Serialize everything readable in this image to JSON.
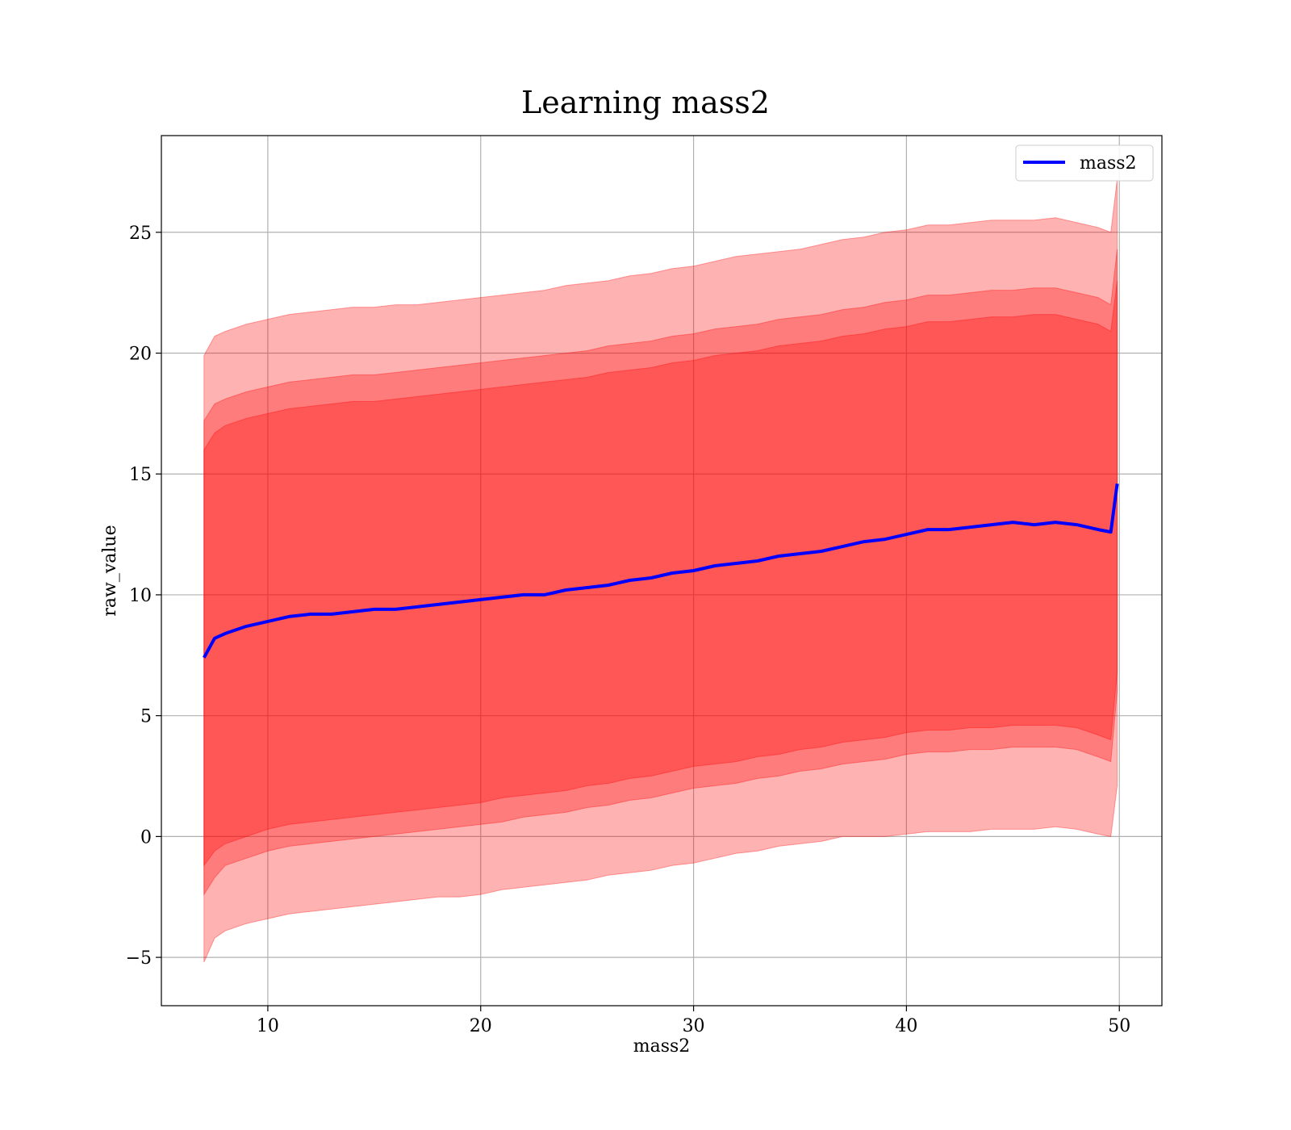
{
  "chart_data": {
    "type": "line",
    "title": "Learning mass2",
    "xlabel": "mass2",
    "ylabel": "raw_value",
    "xlim": [
      5,
      52
    ],
    "ylim": [
      -7,
      29
    ],
    "xticks": [
      10,
      20,
      30,
      40,
      50
    ],
    "yticks": [
      -5,
      0,
      5,
      10,
      15,
      20,
      25
    ],
    "xtick_labels": [
      "10",
      "20",
      "30",
      "40",
      "50"
    ],
    "ytick_labels": [
      "−5",
      "0",
      "5",
      "10",
      "15",
      "20",
      "25"
    ],
    "grid": true,
    "legend_position": "top-right",
    "colors": {
      "line": "#0000ff",
      "band": "#ff0000"
    },
    "series": [
      {
        "name": "mass2",
        "x": [
          7,
          7.5,
          8,
          9,
          10,
          11,
          12,
          13,
          14,
          15,
          16,
          17,
          18,
          19,
          20,
          21,
          22,
          23,
          24,
          25,
          26,
          27,
          28,
          29,
          30,
          31,
          32,
          33,
          34,
          35,
          36,
          37,
          38,
          39,
          40,
          41,
          42,
          43,
          44,
          45,
          46,
          47,
          48,
          49,
          49.6,
          49.9
        ],
        "y": [
          7.4,
          8.2,
          8.4,
          8.7,
          8.9,
          9.1,
          9.2,
          9.2,
          9.3,
          9.4,
          9.4,
          9.5,
          9.6,
          9.7,
          9.8,
          9.9,
          10.0,
          10.0,
          10.2,
          10.3,
          10.4,
          10.6,
          10.7,
          10.9,
          11.0,
          11.2,
          11.3,
          11.4,
          11.6,
          11.7,
          11.8,
          12.0,
          12.2,
          12.3,
          12.5,
          12.7,
          12.7,
          12.8,
          12.9,
          13.0,
          12.9,
          13.0,
          12.9,
          12.7,
          12.6,
          14.6
        ]
      }
    ],
    "bands": [
      {
        "x": [
          7,
          7.5,
          8,
          9,
          10,
          11,
          12,
          13,
          14,
          15,
          16,
          17,
          18,
          19,
          20,
          21,
          22,
          23,
          24,
          25,
          26,
          27,
          28,
          29,
          30,
          31,
          32,
          33,
          34,
          35,
          36,
          37,
          38,
          39,
          40,
          41,
          42,
          43,
          44,
          45,
          46,
          47,
          48,
          49,
          49.6,
          49.9
        ],
        "lower": [
          -5.2,
          -4.2,
          -3.9,
          -3.6,
          -3.4,
          -3.2,
          -3.1,
          -3.0,
          -2.9,
          -2.8,
          -2.7,
          -2.6,
          -2.5,
          -2.5,
          -2.4,
          -2.2,
          -2.1,
          -2.0,
          -1.9,
          -1.8,
          -1.6,
          -1.5,
          -1.4,
          -1.2,
          -1.1,
          -0.9,
          -0.7,
          -0.6,
          -0.4,
          -0.3,
          -0.2,
          0.0,
          0.0,
          0.0,
          0.1,
          0.2,
          0.2,
          0.2,
          0.3,
          0.3,
          0.3,
          0.4,
          0.3,
          0.1,
          0.0,
          2.1
        ],
        "upper": [
          19.9,
          20.7,
          20.9,
          21.2,
          21.4,
          21.6,
          21.7,
          21.8,
          21.9,
          21.9,
          22.0,
          22.0,
          22.1,
          22.2,
          22.3,
          22.4,
          22.5,
          22.6,
          22.8,
          22.9,
          23.0,
          23.2,
          23.3,
          23.5,
          23.6,
          23.8,
          24.0,
          24.1,
          24.2,
          24.3,
          24.5,
          24.7,
          24.8,
          25.0,
          25.1,
          25.3,
          25.3,
          25.4,
          25.5,
          25.5,
          25.5,
          25.6,
          25.4,
          25.2,
          25.0,
          27.2
        ],
        "opacity": 0.3
      },
      {
        "x": [
          7,
          7.5,
          8,
          9,
          10,
          11,
          12,
          13,
          14,
          15,
          16,
          17,
          18,
          19,
          20,
          21,
          22,
          23,
          24,
          25,
          26,
          27,
          28,
          29,
          30,
          31,
          32,
          33,
          34,
          35,
          36,
          37,
          38,
          39,
          40,
          41,
          42,
          43,
          44,
          45,
          46,
          47,
          48,
          49,
          49.6,
          49.9
        ],
        "lower": [
          -2.4,
          -1.7,
          -1.2,
          -0.9,
          -0.6,
          -0.4,
          -0.3,
          -0.2,
          -0.1,
          0.0,
          0.1,
          0.2,
          0.3,
          0.4,
          0.5,
          0.6,
          0.8,
          0.9,
          1.0,
          1.2,
          1.3,
          1.5,
          1.6,
          1.8,
          2.0,
          2.1,
          2.2,
          2.4,
          2.5,
          2.7,
          2.8,
          3.0,
          3.1,
          3.2,
          3.4,
          3.5,
          3.5,
          3.6,
          3.6,
          3.7,
          3.7,
          3.7,
          3.6,
          3.3,
          3.1,
          6.0
        ],
        "upper": [
          17.2,
          17.9,
          18.1,
          18.4,
          18.6,
          18.8,
          18.9,
          19.0,
          19.1,
          19.1,
          19.2,
          19.3,
          19.4,
          19.5,
          19.6,
          19.7,
          19.8,
          19.9,
          20.0,
          20.1,
          20.3,
          20.4,
          20.5,
          20.7,
          20.8,
          21.0,
          21.1,
          21.2,
          21.4,
          21.5,
          21.6,
          21.8,
          21.9,
          22.1,
          22.2,
          22.4,
          22.4,
          22.5,
          22.6,
          22.6,
          22.7,
          22.7,
          22.5,
          22.3,
          22.0,
          24.3
        ],
        "opacity": 0.3
      },
      {
        "x": [
          7,
          7.5,
          8,
          9,
          10,
          11,
          12,
          13,
          14,
          15,
          16,
          17,
          18,
          19,
          20,
          21,
          22,
          23,
          24,
          25,
          26,
          27,
          28,
          29,
          30,
          31,
          32,
          33,
          34,
          35,
          36,
          37,
          38,
          39,
          40,
          41,
          42,
          43,
          44,
          45,
          46,
          47,
          48,
          49,
          49.6,
          49.9
        ],
        "lower": [
          -1.2,
          -0.6,
          -0.3,
          0.0,
          0.3,
          0.5,
          0.6,
          0.7,
          0.8,
          0.9,
          1.0,
          1.1,
          1.2,
          1.3,
          1.4,
          1.6,
          1.7,
          1.8,
          1.9,
          2.1,
          2.2,
          2.4,
          2.5,
          2.7,
          2.9,
          3.0,
          3.1,
          3.3,
          3.4,
          3.6,
          3.7,
          3.9,
          4.0,
          4.1,
          4.3,
          4.4,
          4.4,
          4.5,
          4.5,
          4.6,
          4.6,
          4.6,
          4.5,
          4.2,
          4.0,
          6.8
        ],
        "upper": [
          16.0,
          16.7,
          17.0,
          17.3,
          17.5,
          17.7,
          17.8,
          17.9,
          18.0,
          18.0,
          18.1,
          18.2,
          18.3,
          18.4,
          18.5,
          18.6,
          18.7,
          18.8,
          18.9,
          19.0,
          19.2,
          19.3,
          19.4,
          19.6,
          19.7,
          19.9,
          20.0,
          20.1,
          20.3,
          20.4,
          20.5,
          20.7,
          20.8,
          21.0,
          21.1,
          21.3,
          21.3,
          21.4,
          21.5,
          21.5,
          21.6,
          21.6,
          21.4,
          21.2,
          20.9,
          23.0
        ],
        "opacity": 0.3
      }
    ]
  }
}
